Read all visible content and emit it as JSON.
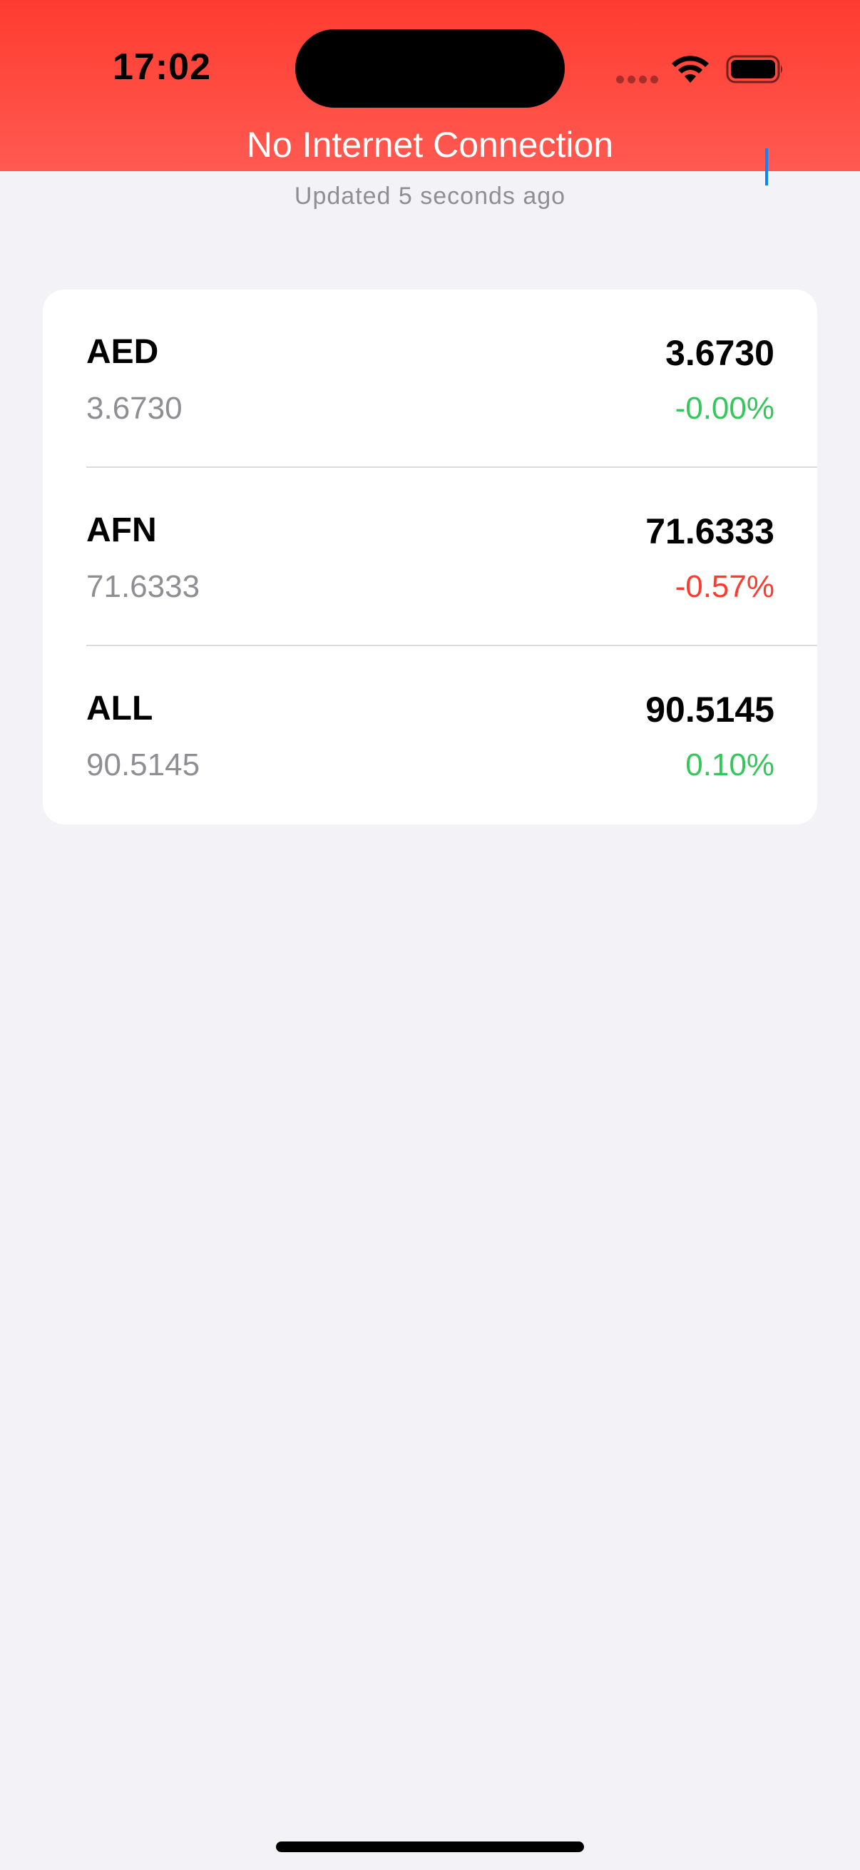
{
  "status_bar": {
    "time": "17:02"
  },
  "banner": {
    "text": "No Internet Connection",
    "color": "#ff3b30"
  },
  "header": {
    "updated_text": "Updated 5 seconds ago",
    "add_icon": "plus-icon",
    "accent_color": "#0a84ff"
  },
  "currencies": [
    {
      "code": "AED",
      "rate": "3.6730",
      "sub_rate": "3.6730",
      "change": "-0.00%",
      "trend": "up"
    },
    {
      "code": "AFN",
      "rate": "71.6333",
      "sub_rate": "71.6333",
      "change": "-0.57%",
      "trend": "down"
    },
    {
      "code": "ALL",
      "rate": "90.5145",
      "sub_rate": "90.5145",
      "change": "0.10%",
      "trend": "up"
    }
  ],
  "colors": {
    "positive": "#34c759",
    "negative": "#ff3b30",
    "secondary_text": "#8e8e93"
  }
}
